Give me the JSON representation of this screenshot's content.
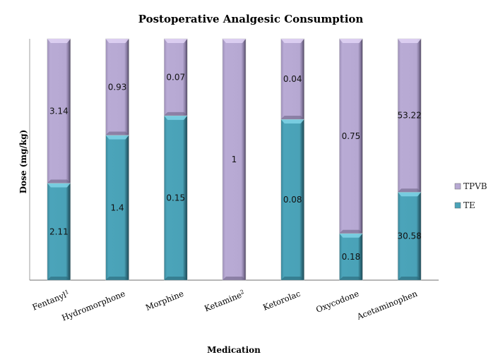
{
  "chart_data": {
    "type": "bar",
    "stacked": "percent",
    "title": "Postoperative Analgesic Consumption",
    "xlabel": "Medication",
    "ylabel": "Dose (mg/kg)",
    "categories": [
      "Fentanyl",
      "Hydromorphone",
      "Morphine",
      "Ketamine",
      "Ketorolac",
      "Oxycodone",
      "Acetaminophen"
    ],
    "category_superscripts": [
      "1",
      "",
      "",
      "2",
      "",
      "",
      ""
    ],
    "series": [
      {
        "name": "TE",
        "color": "#4aa3b8",
        "values": [
          2.11,
          1.4,
          0.15,
          0,
          0.08,
          0.18,
          30.58
        ],
        "labels": [
          "2.11",
          "1.4",
          "0.15",
          "",
          "0.08",
          "0.18",
          "30.58"
        ]
      },
      {
        "name": "TPVB",
        "color": "#b7a9d3",
        "values": [
          3.14,
          0.93,
          0.07,
          1,
          0.04,
          0.75,
          53.22
        ],
        "labels": [
          "3.14",
          "0.93",
          "0.07",
          "1",
          "0.04",
          "0.75",
          "53.22"
        ]
      }
    ],
    "ylim": [
      0,
      1
    ],
    "y_ticks_visible": false,
    "grid": false,
    "legend": {
      "position": "right",
      "entries": [
        "TPVB",
        "TE"
      ]
    }
  }
}
